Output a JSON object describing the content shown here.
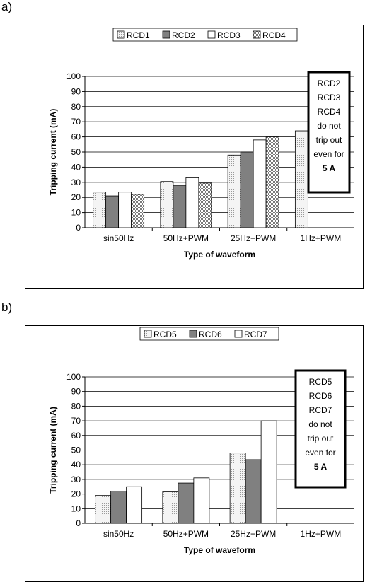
{
  "panels": [
    {
      "label": "a)",
      "chart_data": {
        "type": "bar",
        "categories": [
          "sin50Hz",
          "50Hz+PWM",
          "25Hz+PWM",
          "1Hz+PWM"
        ],
        "series": [
          {
            "name": "RCD1",
            "values": [
              23.5,
              30.5,
              48,
              64
            ],
            "color": "#ececec",
            "pattern": "dots"
          },
          {
            "name": "RCD2",
            "values": [
              21,
              28,
              50,
              null
            ],
            "color": "#808080",
            "pattern": "solid"
          },
          {
            "name": "RCD3",
            "values": [
              23.5,
              33,
              58,
              null
            ],
            "color": "#ffffff",
            "pattern": "solid"
          },
          {
            "name": "RCD4",
            "values": [
              22,
              29.5,
              60,
              null
            ],
            "color": "#d4d4d4",
            "pattern": "checker"
          }
        ],
        "xlabel": "Type of waveform",
        "ylabel": "Tripping current (mA)",
        "ylim": [
          0,
          100
        ],
        "yticks": [
          0,
          10,
          20,
          30,
          40,
          50,
          60,
          70,
          80,
          90,
          100
        ],
        "grid": true,
        "legend": "top",
        "annotation": [
          "RCD2",
          "RCD3",
          "RCD4",
          "do not",
          "trip out",
          "even for",
          "5 A"
        ]
      }
    },
    {
      "label": "b)",
      "chart_data": {
        "type": "bar",
        "categories": [
          "sin50Hz",
          "50Hz+PWM",
          "25Hz+PWM",
          "1Hz+PWM"
        ],
        "series": [
          {
            "name": "RCD5",
            "values": [
              19,
              21.5,
              48,
              null
            ],
            "color": "#ececec",
            "pattern": "dots"
          },
          {
            "name": "RCD6",
            "values": [
              22,
              27.5,
              43.5,
              null
            ],
            "color": "#808080",
            "pattern": "solid"
          },
          {
            "name": "RCD7",
            "values": [
              25,
              31,
              70,
              null
            ],
            "color": "#ffffff",
            "pattern": "solid"
          }
        ],
        "xlabel": "Type of waveform",
        "ylabel": "Tripping current (mA)",
        "ylim": [
          0,
          100
        ],
        "yticks": [
          0,
          10,
          20,
          30,
          40,
          50,
          60,
          70,
          80,
          90,
          100
        ],
        "grid": true,
        "legend": "top",
        "annotation": [
          "RCD5",
          "RCD6",
          "RCD7",
          "do not",
          "trip out",
          "even for",
          "5 A"
        ]
      }
    }
  ]
}
